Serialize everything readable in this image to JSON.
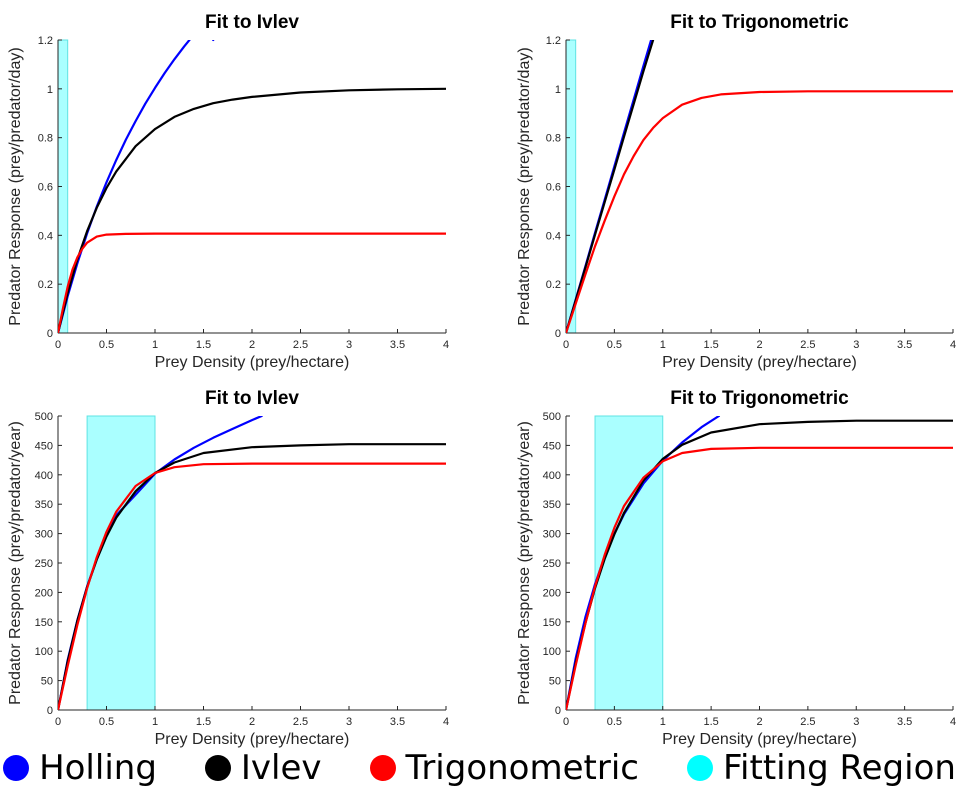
{
  "legend": {
    "items": [
      {
        "label": "Holling",
        "color": "#0000ff"
      },
      {
        "label": "Ivlev",
        "color": "#000000"
      },
      {
        "label": "Trigonometric",
        "color": "#ff0000"
      },
      {
        "label": "Fitting Region",
        "color": "#00ffff"
      }
    ]
  },
  "chart_data": [
    {
      "type": "line",
      "title": "Fit to Ivlev",
      "xlabel": "Prey Density (prey/hectare)",
      "ylabel": "Predator Response (prey/predator/day)",
      "xlim": [
        0,
        4
      ],
      "ylim": [
        0,
        1.2
      ],
      "xticks": [
        0,
        0.5,
        1,
        1.5,
        2,
        2.5,
        3,
        3.5,
        4
      ],
      "xticklabels": [
        "0",
        "0.5",
        "1",
        "1.5",
        "2",
        "2.5",
        "3",
        "3.5",
        "4"
      ],
      "yticks": [
        0,
        0.2,
        0.4,
        0.6,
        0.8,
        1,
        1.2
      ],
      "yticklabels": [
        "0",
        "0.2",
        "0.4",
        "0.6",
        "0.8",
        "1",
        "1.2"
      ],
      "fitting_region": [
        0,
        0.1
      ],
      "series": [
        {
          "name": "Holling",
          "color": "#0000ff",
          "x": [
            0,
            0.1,
            0.2,
            0.3,
            0.4,
            0.5,
            0.6,
            0.7,
            0.8,
            0.9,
            1.0,
            1.1,
            1.2,
            1.3,
            1.4,
            1.5,
            1.6
          ],
          "y": [
            0,
            0.151,
            0.286,
            0.408,
            0.518,
            0.617,
            0.708,
            0.792,
            0.868,
            0.939,
            1.004,
            1.065,
            1.121,
            1.173,
            1.222,
            1.268,
            1.2
          ]
        },
        {
          "name": "Ivlev",
          "color": "#000000",
          "x": [
            0,
            0.1,
            0.2,
            0.3,
            0.4,
            0.5,
            0.6,
            0.8,
            1.0,
            1.2,
            1.4,
            1.6,
            1.8,
            2.0,
            2.5,
            3.0,
            3.5,
            4.0
          ],
          "y": [
            0,
            0.164,
            0.302,
            0.417,
            0.513,
            0.594,
            0.661,
            0.765,
            0.835,
            0.885,
            0.918,
            0.941,
            0.956,
            0.967,
            0.985,
            0.994,
            0.998,
            1.0
          ]
        },
        {
          "name": "Trigonometric",
          "color": "#ff0000",
          "x": [
            0,
            0.05,
            0.1,
            0.15,
            0.2,
            0.25,
            0.3,
            0.4,
            0.5,
            0.7,
            1.0,
            1.5,
            2.0,
            3.0,
            4.0
          ],
          "y": [
            0,
            0.1,
            0.19,
            0.26,
            0.31,
            0.345,
            0.37,
            0.395,
            0.403,
            0.406,
            0.407,
            0.407,
            0.407,
            0.407,
            0.407
          ]
        }
      ]
    },
    {
      "type": "line",
      "title": "Fit to Trigonometric",
      "xlabel": "Prey Density (prey/hectare)",
      "ylabel": "Predator Response (prey/predator/day)",
      "xlim": [
        0,
        4
      ],
      "ylim": [
        0,
        1.2
      ],
      "xticks": [
        0,
        0.5,
        1,
        1.5,
        2,
        2.5,
        3,
        3.5,
        4
      ],
      "xticklabels": [
        "0",
        "0.5",
        "1",
        "1.5",
        "2",
        "2.5",
        "3",
        "3.5",
        "4"
      ],
      "yticks": [
        0,
        0.2,
        0.4,
        0.6,
        0.8,
        1,
        1.2
      ],
      "yticklabels": [
        "0",
        "0.2",
        "0.4",
        "0.6",
        "0.8",
        "1",
        "1.2"
      ],
      "fitting_region": [
        0,
        0.1
      ],
      "series": [
        {
          "name": "Holling",
          "color": "#0000ff",
          "x": [
            0,
            0.1,
            0.2,
            0.3,
            0.4,
            0.5,
            0.6,
            0.7,
            0.8,
            0.88
          ],
          "y": [
            0,
            0.137,
            0.273,
            0.41,
            0.546,
            0.683,
            0.82,
            0.956,
            1.093,
            1.2
          ]
        },
        {
          "name": "Ivlev",
          "color": "#000000",
          "x": [
            0,
            0.1,
            0.2,
            0.3,
            0.4,
            0.5,
            0.6,
            0.7,
            0.8,
            0.9
          ],
          "y": [
            0,
            0.134,
            0.268,
            0.402,
            0.536,
            0.67,
            0.804,
            0.938,
            1.072,
            1.2
          ]
        },
        {
          "name": "Trigonometric",
          "color": "#ff0000",
          "x": [
            0,
            0.1,
            0.2,
            0.3,
            0.4,
            0.5,
            0.6,
            0.7,
            0.8,
            0.9,
            1.0,
            1.2,
            1.4,
            1.6,
            2.0,
            2.5,
            3.0,
            4.0
          ],
          "y": [
            0,
            0.12,
            0.24,
            0.355,
            0.46,
            0.56,
            0.65,
            0.725,
            0.79,
            0.84,
            0.88,
            0.935,
            0.963,
            0.977,
            0.987,
            0.99,
            0.99,
            0.99
          ]
        }
      ]
    },
    {
      "type": "line",
      "title": "Fit to Ivlev",
      "xlabel": "Prey Density (prey/hectare)",
      "ylabel": "Predator Response (prey/predator/year)",
      "xlim": [
        0,
        4
      ],
      "ylim": [
        0,
        500
      ],
      "xticks": [
        0,
        0.5,
        1,
        1.5,
        2,
        2.5,
        3,
        3.5,
        4
      ],
      "xticklabels": [
        "0",
        "0.5",
        "1",
        "1.5",
        "2",
        "2.5",
        "3",
        "3.5",
        "4"
      ],
      "yticks": [
        0,
        50,
        100,
        150,
        200,
        250,
        300,
        350,
        400,
        450,
        500
      ],
      "yticklabels": [
        "0",
        "50",
        "100",
        "150",
        "200",
        "250",
        "300",
        "350",
        "400",
        "450",
        "500"
      ],
      "fitting_region": [
        0.3,
        1.0
      ],
      "series": [
        {
          "name": "Holling",
          "color": "#0000ff",
          "x": [
            0,
            0.1,
            0.2,
            0.3,
            0.4,
            0.5,
            0.6,
            0.8,
            1.0,
            1.2,
            1.4,
            1.6,
            1.8,
            2.0,
            2.1
          ],
          "y": [
            0,
            85,
            153,
            210,
            257,
            297,
            331,
            366,
            402,
            426,
            446,
            463,
            478,
            493,
            500
          ]
        },
        {
          "name": "Ivlev",
          "color": "#000000",
          "x": [
            0,
            0.1,
            0.2,
            0.3,
            0.4,
            0.5,
            0.6,
            0.8,
            1.0,
            1.2,
            1.5,
            2.0,
            2.5,
            3.0,
            3.5,
            4.0
          ],
          "y": [
            0,
            83,
            152,
            209,
            256,
            295,
            327,
            372,
            403,
            421,
            437,
            447,
            450,
            452,
            452,
            452
          ]
        },
        {
          "name": "Trigonometric",
          "color": "#ff0000",
          "x": [
            0,
            0.1,
            0.2,
            0.3,
            0.4,
            0.5,
            0.6,
            0.8,
            1.0,
            1.2,
            1.5,
            2.0,
            2.5,
            3.0,
            4.0
          ],
          "y": [
            0,
            75,
            145,
            207,
            260,
            303,
            337,
            381,
            403,
            413,
            418,
            419,
            419,
            419,
            419
          ]
        }
      ]
    },
    {
      "type": "line",
      "title": "Fit to Trigonometric",
      "xlabel": "Prey Density (prey/hectare)",
      "ylabel": "Predator Response (prey/predator/year)",
      "xlim": [
        0,
        4
      ],
      "ylim": [
        0,
        500
      ],
      "xticks": [
        0,
        0.5,
        1,
        1.5,
        2,
        2.5,
        3,
        3.5,
        4
      ],
      "xticklabels": [
        "0",
        "0.5",
        "1",
        "1.5",
        "2",
        "2.5",
        "3",
        "3.5",
        "4"
      ],
      "yticks": [
        0,
        50,
        100,
        150,
        200,
        250,
        300,
        350,
        400,
        450,
        500
      ],
      "yticklabels": [
        "0",
        "50",
        "100",
        "150",
        "200",
        "250",
        "300",
        "350",
        "400",
        "450",
        "500"
      ],
      "fitting_region": [
        0.3,
        1.0
      ],
      "series": [
        {
          "name": "Holling",
          "color": "#0000ff",
          "x": [
            0,
            0.1,
            0.2,
            0.3,
            0.4,
            0.5,
            0.6,
            0.8,
            1.0,
            1.2,
            1.4,
            1.58
          ],
          "y": [
            0,
            88,
            158,
            214,
            261,
            300,
            333,
            385,
            424,
            455,
            481,
            500
          ]
        },
        {
          "name": "Ivlev",
          "color": "#000000",
          "x": [
            0,
            0.1,
            0.2,
            0.3,
            0.4,
            0.5,
            0.6,
            0.8,
            1.0,
            1.2,
            1.5,
            2.0,
            2.5,
            3.0,
            3.5,
            4.0
          ],
          "y": [
            0,
            80,
            148,
            207,
            257,
            299,
            335,
            390,
            427,
            451,
            472,
            486,
            490,
            492,
            492,
            492
          ]
        },
        {
          "name": "Trigonometric",
          "color": "#ff0000",
          "x": [
            0,
            0.1,
            0.2,
            0.3,
            0.4,
            0.5,
            0.6,
            0.8,
            1.0,
            1.2,
            1.5,
            2.0,
            2.5,
            3.0,
            4.0
          ],
          "y": [
            0,
            76,
            147,
            210,
            264,
            310,
            347,
            395,
            423,
            437,
            444,
            446,
            446,
            446,
            446
          ]
        }
      ]
    }
  ]
}
